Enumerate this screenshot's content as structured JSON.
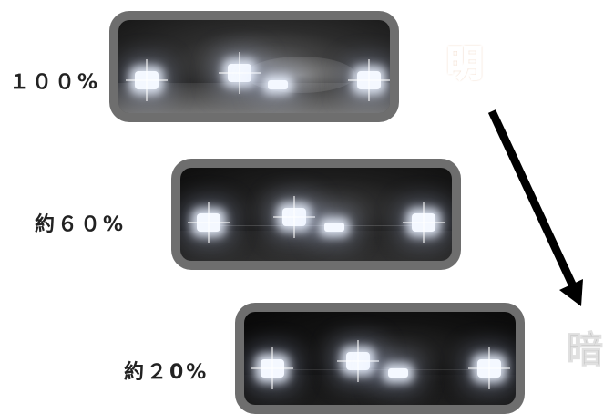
{
  "rows": [
    {
      "label": "１００%",
      "brightness_percent": 100
    },
    {
      "label": "約６０%",
      "brightness_percent": 60
    },
    {
      "label": "約２0%",
      "brightness_percent": 20
    }
  ],
  "legend": {
    "bright_label": "明",
    "dark_label": "暗",
    "bright_color": "#f08a3a",
    "dark_color": "#bdbdbd",
    "arrow_icon": "arrow-down-right-icon"
  }
}
